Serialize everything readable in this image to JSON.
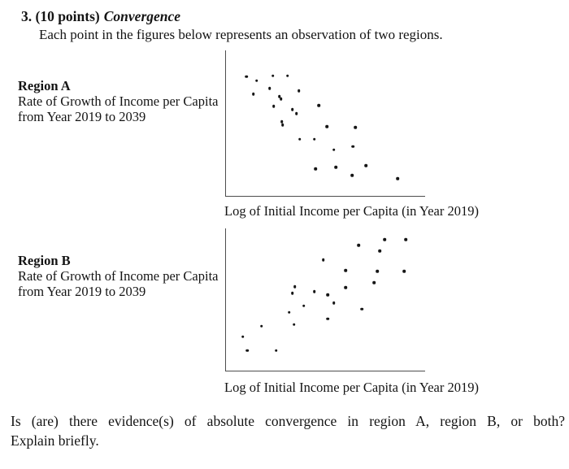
{
  "page": {
    "heading_prefix": "3. (10 points)",
    "heading_title": "Convergence",
    "intro": "Each point in the figures below represents an observation of two regions.",
    "question_line1": "Is (are) there evidence(s) of absolute convergence in region A, region B, or both?",
    "question_line2": "Explain briefly."
  },
  "colors": {
    "background": "#ffffff",
    "text": "#141414",
    "axis": "#4d4d4d",
    "dot": "#151515"
  },
  "chart_data": [
    {
      "type": "scatter",
      "region": "Region A",
      "ylabel_line1": "Rate of Growth of Income per Capita",
      "ylabel_line2": "from Year 2019 to 2039",
      "xlabel": "Log of Initial Income per Capita (in Year 2019)",
      "axes_numeric_labels": false,
      "x_range_units": [
        0,
        100
      ],
      "y_range_units": [
        0,
        100
      ],
      "correlation": "negative (downward-sloping cloud: higher initial income, lower growth)",
      "marker": "small black dot",
      "points": [
        [
          10.2,
          81.9
        ],
        [
          15.4,
          79.1
        ],
        [
          23.6,
          82.5
        ],
        [
          30.9,
          82.5
        ],
        [
          13.8,
          70.1
        ],
        [
          22.0,
          74.0
        ],
        [
          26.8,
          68.4
        ],
        [
          27.6,
          66.7
        ],
        [
          36.6,
          72.3
        ],
        [
          24.0,
          61.6
        ],
        [
          33.3,
          59.3
        ],
        [
          35.4,
          56.5
        ],
        [
          46.7,
          62.1
        ],
        [
          28.0,
          50.8
        ],
        [
          28.5,
          48.6
        ],
        [
          50.8,
          47.5
        ],
        [
          65.0,
          46.9
        ],
        [
          37.0,
          39.0
        ],
        [
          44.3,
          39.0
        ],
        [
          54.1,
          31.6
        ],
        [
          63.8,
          33.9
        ],
        [
          45.1,
          18.6
        ],
        [
          55.3,
          19.8
        ],
        [
          63.4,
          14.1
        ],
        [
          70.3,
          20.9
        ],
        [
          86.2,
          11.9
        ]
      ]
    },
    {
      "type": "scatter",
      "region": "Region B",
      "ylabel_line1": "Rate of Growth of Income per Capita",
      "ylabel_line2": "from Year 2019 to 2039",
      "xlabel": "Log of Initial Income per Capita (in Year 2019)",
      "axes_numeric_labels": false,
      "x_range_units": [
        0,
        100
      ],
      "y_range_units": [
        0,
        100
      ],
      "correlation": "positive (upward-sloping cloud: higher initial income, higher growth)",
      "marker": "small black dot",
      "points": [
        [
          8.5,
          23.9
        ],
        [
          10.6,
          14.2
        ],
        [
          17.9,
          31.3
        ],
        [
          25.2,
          14.2
        ],
        [
          31.7,
          40.9
        ],
        [
          33.3,
          54.5
        ],
        [
          34.6,
          59.1
        ],
        [
          34.1,
          32.4
        ],
        [
          39.0,
          45.5
        ],
        [
          44.3,
          55.7
        ],
        [
          48.8,
          77.8
        ],
        [
          51.2,
          53.4
        ],
        [
          54.1,
          47.7
        ],
        [
          51.2,
          36.4
        ],
        [
          60.2,
          70.5
        ],
        [
          60.2,
          58.5
        ],
        [
          66.7,
          88.1
        ],
        [
          68.3,
          43.2
        ],
        [
          74.4,
          61.9
        ],
        [
          76.0,
          69.9
        ],
        [
          77.2,
          84.1
        ],
        [
          79.7,
          92.0
        ],
        [
          89.4,
          69.9
        ],
        [
          90.2,
          92.0
        ]
      ]
    }
  ]
}
